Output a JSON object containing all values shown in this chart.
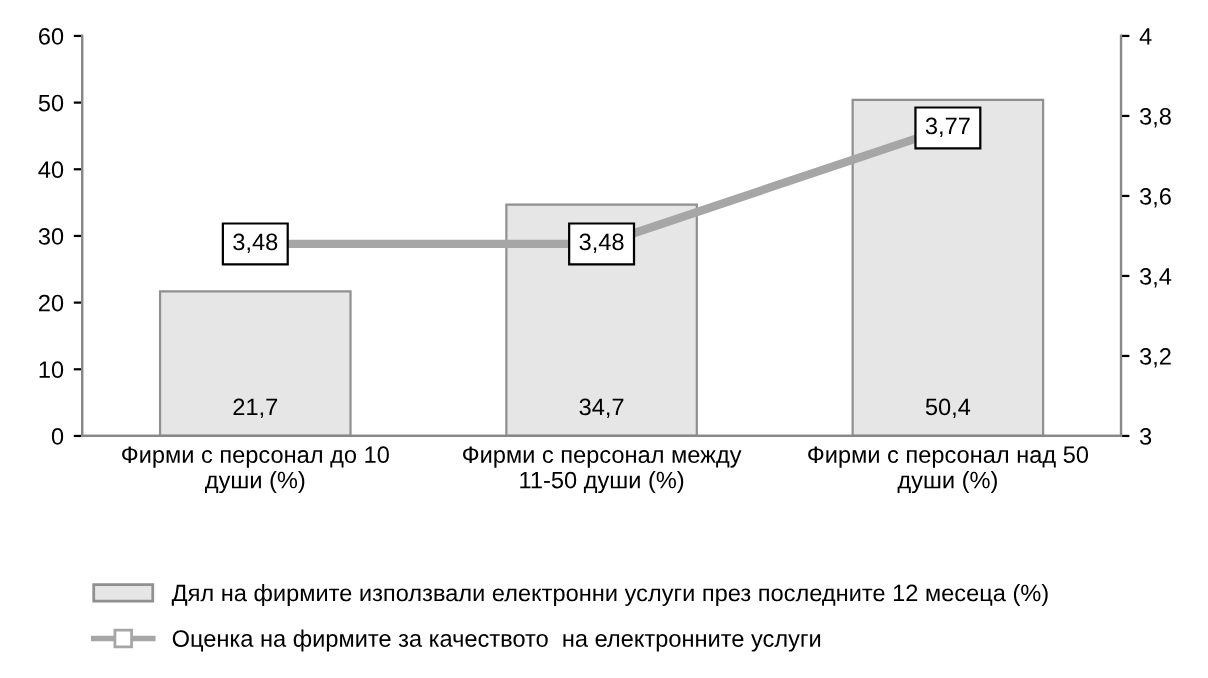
{
  "chart_data": {
    "type": "bar",
    "categories": [
      "Фирми с персонал до 10\nдуши (%)",
      "Фирми с персонал между\n11-50 души (%)",
      "Фирми с персонал над 50\nдуши (%)"
    ],
    "series": [
      {
        "name": "Дял на фирмите използвали електронни услуги през последните 12 месеца (%)",
        "color": "#e6e6e6",
        "values": [
          21.7,
          34.7,
          50.4
        ],
        "value_labels": [
          "21,7",
          "34,7",
          "50,4"
        ]
      },
      {
        "name": "Оценка на фирмите за качеството  на електронните услуги",
        "type": "line",
        "axis": "y2",
        "color": "#a6a6a6",
        "values": [
          3.48,
          3.48,
          3.77
        ],
        "value_labels": [
          "3,48",
          "3,48",
          "3,77"
        ]
      }
    ],
    "ylim": [
      0,
      60
    ],
    "yticks": [
      0,
      10,
      20,
      30,
      40,
      50,
      60
    ],
    "y2lim": [
      3,
      4
    ],
    "y2ticks": [
      3,
      {
        "value": 3.2,
        "label": "3,2"
      },
      {
        "value": 3.4,
        "label": "3,4"
      },
      {
        "value": 3.6,
        "label": "3,6"
      },
      {
        "value": 3.8,
        "label": "3,8"
      },
      4
    ],
    "marker": "square",
    "grid": false,
    "legend": "bottom"
  }
}
